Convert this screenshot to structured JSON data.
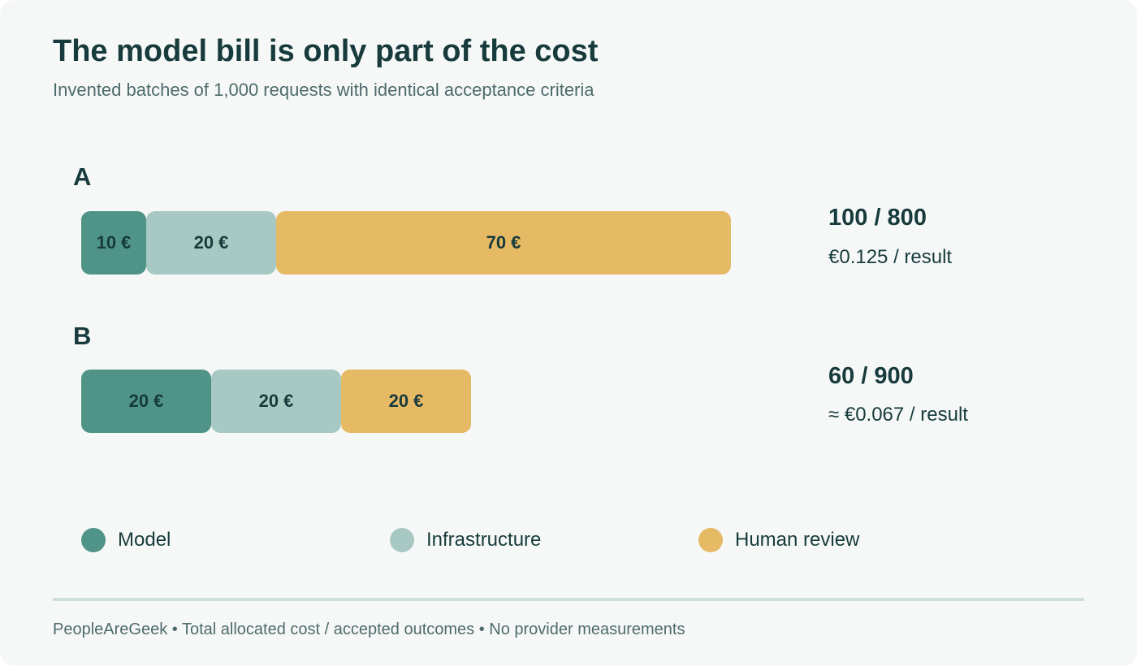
{
  "title": "The model bill is only part of the cost",
  "subtitle": "Invented batches of 1,000 requests with identical acceptance criteria",
  "chart_data": {
    "type": "bar",
    "orientation": "horizontal",
    "stacked": true,
    "categories": [
      "A",
      "B"
    ],
    "series": [
      {
        "name": "Model",
        "color": "#4f9486",
        "values": [
          10,
          20
        ],
        "labels": [
          "10 €",
          "20 €"
        ]
      },
      {
        "name": "Infrastructure",
        "color": "#a8c9c3",
        "values": [
          20,
          20
        ],
        "labels": [
          "20 €",
          "20 €"
        ]
      },
      {
        "name": "Human review",
        "color": "#e6b965",
        "values": [
          70,
          20
        ],
        "labels": [
          "70 €",
          "20 €"
        ]
      }
    ],
    "unit": "€",
    "annotations": [
      {
        "category": "A",
        "ratio": "100 / 800",
        "per_result": "€0.125 / result"
      },
      {
        "category": "B",
        "ratio": "60 / 900",
        "per_result": "≈ €0.067 / result"
      }
    ],
    "legend_position": "bottom",
    "grid": false,
    "xlim": [
      0,
      100
    ]
  },
  "footer": "PeopleAreGeek • Total allocated cost / accepted outcomes • No provider measurements"
}
